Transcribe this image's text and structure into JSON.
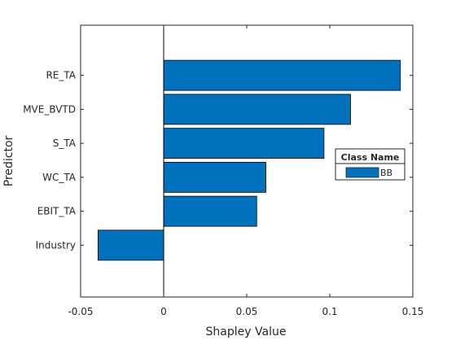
{
  "chart_data": {
    "type": "bar",
    "orientation": "horizontal",
    "categories": [
      "RE_TA",
      "MVE_BVTD",
      "S_TA",
      "WC_TA",
      "EBIT_TA",
      "Industry"
    ],
    "series": [
      {
        "name": "BB",
        "values": [
          0.1425,
          0.1125,
          0.0965,
          0.0615,
          0.056,
          -0.0395
        ]
      }
    ],
    "xlabel": "Shapley Value",
    "ylabel": "Predictor",
    "xlim": [
      -0.05,
      0.15
    ],
    "xticks": [
      -0.05,
      0,
      0.05,
      0.1,
      0.15
    ],
    "xtick_labels": [
      "-0.05",
      "0",
      "0.05",
      "0.1",
      "0.15"
    ],
    "legend": {
      "title": "Class Name",
      "entries": [
        "BB"
      ],
      "placement": "right"
    },
    "grid": false,
    "colors": {
      "bar": "#0072BD",
      "axis": "#262626",
      "zero_line": "#000000"
    }
  }
}
